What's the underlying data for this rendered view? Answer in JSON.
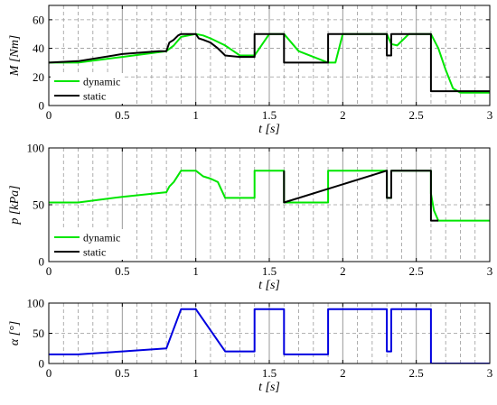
{
  "colors": {
    "dynamic": "#00e600",
    "static": "#000000",
    "alpha": "#0000e0",
    "grid": "#9a9a9a",
    "axis": "#000000"
  },
  "chart_data": [
    {
      "type": "line",
      "ylabel": "M [Nm]",
      "xlabel": "t [s]",
      "xlim": [
        0,
        3
      ],
      "ylim": [
        0,
        70
      ],
      "xticks": [
        0,
        0.5,
        1,
        1.5,
        2,
        2.5,
        3
      ],
      "xtick_labels": [
        "0",
        "0.5",
        "1",
        "1.5",
        "2",
        "2.5",
        "3"
      ],
      "yticks": [
        0,
        20,
        40,
        60
      ],
      "ytick_labels": [
        "0",
        "20",
        "40",
        "60"
      ],
      "legend": {
        "placement": "bottom-left",
        "entries": [
          "dynamic",
          "static"
        ]
      },
      "series": [
        {
          "name": "dynamic",
          "color_key": "dynamic",
          "x": [
            0,
            0.2,
            0.5,
            0.8,
            0.85,
            0.9,
            1.0,
            1.05,
            1.1,
            1.2,
            1.3,
            1.4,
            1.42,
            1.5,
            1.55,
            1.6,
            1.7,
            1.9,
            1.95,
            2.0,
            2.1,
            2.2,
            2.3,
            2.33,
            2.37,
            2.4,
            2.45,
            2.5,
            2.55,
            2.6,
            2.65,
            2.7,
            2.75,
            2.8,
            3.0
          ],
          "y": [
            30,
            30,
            34,
            38,
            42,
            48,
            50,
            49,
            47,
            42,
            35,
            35,
            38,
            50,
            50,
            50,
            38,
            30,
            30,
            50,
            50,
            50,
            50,
            43,
            42,
            45,
            50,
            50,
            50,
            50,
            40,
            25,
            12,
            9,
            9
          ]
        },
        {
          "name": "static",
          "color_key": "static",
          "x": [
            0,
            0.2,
            0.5,
            0.75,
            0.8,
            0.82,
            0.85,
            0.88,
            0.9,
            1.0,
            1.02,
            1.05,
            1.1,
            1.15,
            1.2,
            1.3,
            1.4,
            1.4,
            1.6,
            1.6,
            1.8,
            1.9,
            1.9,
            2.3,
            2.3,
            2.33,
            2.33,
            2.6,
            2.6,
            2.8,
            3.0
          ],
          "y": [
            30,
            31,
            36,
            38,
            38,
            44,
            46,
            49,
            50,
            50,
            47,
            46,
            44,
            40,
            35,
            34,
            34,
            50,
            50,
            30,
            30,
            30,
            50,
            50,
            35,
            35,
            50,
            50,
            10,
            10,
            10
          ]
        }
      ]
    },
    {
      "type": "line",
      "ylabel": "p [kPa]",
      "xlabel": "t [s]",
      "xlim": [
        0,
        3
      ],
      "ylim": [
        0,
        100
      ],
      "xticks": [
        0,
        0.5,
        1,
        1.5,
        2,
        2.5,
        3
      ],
      "xtick_labels": [
        "0",
        "0.5",
        "1",
        "1.5",
        "2",
        "2.5",
        "3"
      ],
      "yticks": [
        0,
        50,
        100
      ],
      "ytick_labels": [
        "0",
        "50",
        "100"
      ],
      "legend": {
        "placement": "bottom-left",
        "entries": [
          "dynamic",
          "static"
        ]
      },
      "series": [
        {
          "name": "dynamic",
          "color_key": "dynamic",
          "x": [
            0,
            0.2,
            0.5,
            0.8,
            0.82,
            0.85,
            0.9,
            1.0,
            1.02,
            1.05,
            1.1,
            1.15,
            1.2,
            1.4,
            1.4,
            1.6,
            1.6,
            1.9,
            1.9,
            2.3,
            2.3,
            2.33,
            2.33,
            2.6,
            2.6,
            2.62,
            2.65,
            3.0
          ],
          "y": [
            52,
            52,
            57,
            61,
            66,
            70,
            80,
            80,
            78,
            75,
            73,
            70,
            56,
            56,
            80,
            80,
            52,
            52,
            80,
            80,
            56,
            56,
            80,
            80,
            60,
            45,
            36,
            36
          ]
        },
        {
          "name": "static",
          "color_key": "static",
          "x": [
            1.6,
            1.6,
            2.3,
            2.3,
            2.33,
            2.33,
            2.6,
            2.6,
            2.65
          ],
          "y": [
            80,
            52,
            80,
            56,
            56,
            80,
            80,
            36,
            36
          ]
        }
      ]
    },
    {
      "type": "line",
      "ylabel": "α [°]",
      "xlabel": "t [s]",
      "xlim": [
        0,
        3
      ],
      "ylim": [
        0,
        100
      ],
      "xticks": [
        0,
        0.5,
        1,
        1.5,
        2,
        2.5,
        3
      ],
      "xtick_labels": [
        "0",
        "0.5",
        "1",
        "1.5",
        "2",
        "2.5",
        "3"
      ],
      "yticks": [
        0,
        50,
        100
      ],
      "ytick_labels": [
        "0",
        "50",
        "100"
      ],
      "series": [
        {
          "color_key": "alpha",
          "x": [
            0,
            0.2,
            0.5,
            0.8,
            0.8,
            0.9,
            1.0,
            1.2,
            1.4,
            1.4,
            1.6,
            1.6,
            1.9,
            1.9,
            2.3,
            2.3,
            2.33,
            2.33,
            2.6,
            2.6,
            3.0
          ],
          "y": [
            15,
            15,
            20,
            25,
            25,
            90,
            90,
            20,
            20,
            90,
            90,
            15,
            15,
            90,
            90,
            20,
            20,
            90,
            90,
            0,
            0
          ]
        }
      ]
    }
  ]
}
